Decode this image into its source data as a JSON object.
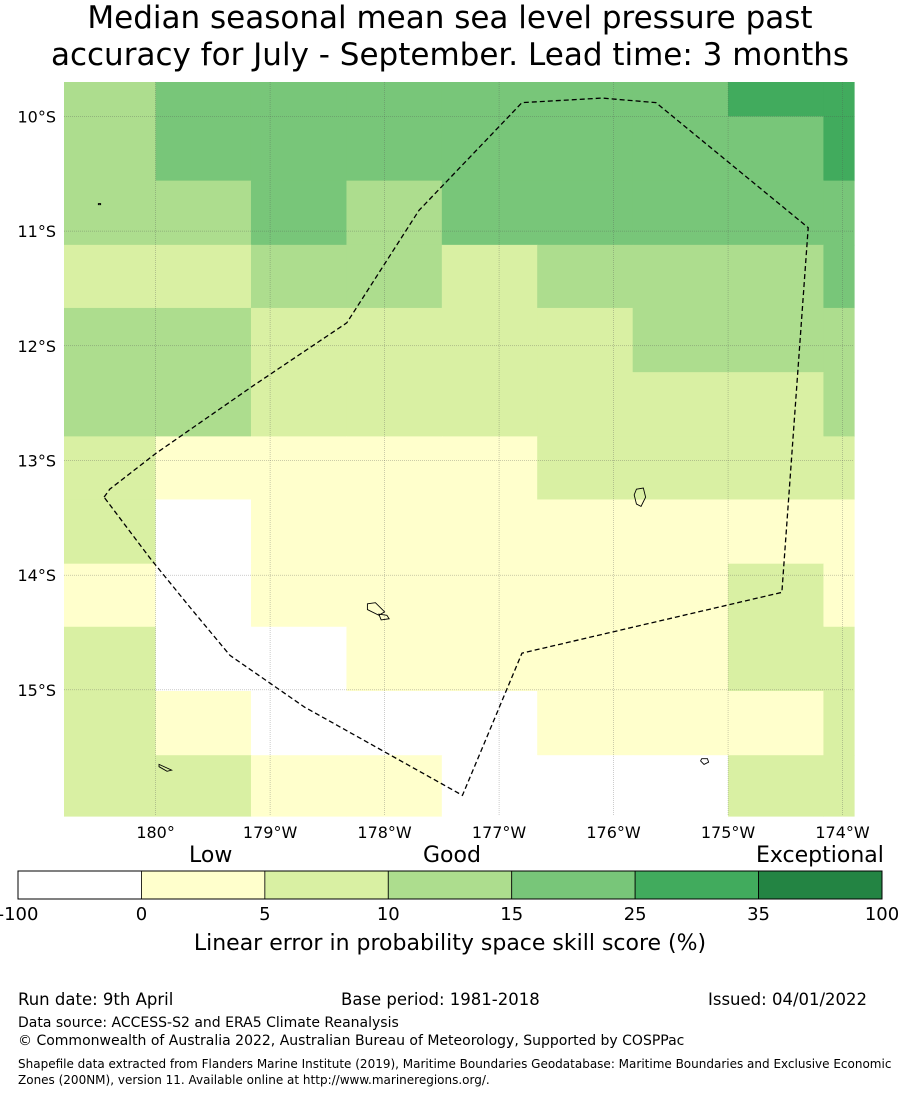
{
  "title": {
    "line1": "Median seasonal mean sea level pressure past",
    "line2": "accuracy for July - September. Lead time: 3 months"
  },
  "map": {
    "lon_ticks": [
      {
        "value": 180,
        "label": "180°"
      },
      {
        "value": 181,
        "label": "179°W"
      },
      {
        "value": 182,
        "label": "178°W"
      },
      {
        "value": 183,
        "label": "177°W"
      },
      {
        "value": 184,
        "label": "176°W"
      },
      {
        "value": 185,
        "label": "175°W"
      },
      {
        "value": 186,
        "label": "174°W"
      }
    ],
    "lat_ticks": [
      {
        "value": -10,
        "label": "10°S"
      },
      {
        "value": -11,
        "label": "11°S"
      },
      {
        "value": -12,
        "label": "12°S"
      },
      {
        "value": -13,
        "label": "13°S"
      },
      {
        "value": -14,
        "label": "14°S"
      },
      {
        "value": -15,
        "label": "15°S"
      }
    ],
    "lon_range": [
      179.2,
      186.1
    ],
    "lat_range": [
      -16.1,
      -9.7
    ],
    "grid_lon_edges": [
      179.2,
      180.0,
      180.833,
      181.667,
      182.5,
      183.333,
      184.167,
      185.0,
      185.833,
      186.1
    ],
    "grid_lat_edges": [
      -9.7,
      -10.0,
      -10.56,
      -11.12,
      -11.67,
      -12.23,
      -12.79,
      -13.34,
      -13.9,
      -14.45,
      -15.01,
      -15.57,
      -16.1
    ],
    "grid_levels": [
      [
        2,
        3,
        3,
        3,
        3,
        3,
        3,
        4,
        4
      ],
      [
        2,
        3,
        3,
        3,
        3,
        3,
        3,
        3,
        4
      ],
      [
        2,
        2,
        3,
        2,
        3,
        3,
        3,
        3,
        3
      ],
      [
        1,
        1,
        2,
        2,
        1,
        2,
        2,
        2,
        3
      ],
      [
        2,
        2,
        1,
        1,
        1,
        1,
        2,
        2,
        2
      ],
      [
        2,
        2,
        1,
        1,
        1,
        1,
        1,
        1,
        2
      ],
      [
        1,
        0,
        0,
        0,
        0,
        1,
        1,
        1,
        1
      ],
      [
        1,
        -1,
        0,
        0,
        0,
        0,
        0,
        0,
        0
      ],
      [
        0,
        -1,
        0,
        0,
        0,
        0,
        0,
        1,
        0
      ],
      [
        1,
        -1,
        -1,
        0,
        0,
        0,
        0,
        1,
        1
      ],
      [
        1,
        0,
        -1,
        -1,
        -1,
        0,
        0,
        0,
        1
      ],
      [
        1,
        1,
        0,
        0,
        -1,
        -1,
        -1,
        1,
        1
      ]
    ],
    "eez_boundary": [
      [
        179.55,
        -13.32
      ],
      [
        179.6,
        -13.25
      ],
      [
        180.0,
        -12.94
      ],
      [
        180.85,
        -12.35
      ],
      [
        181.67,
        -11.8
      ],
      [
        182.3,
        -10.82
      ],
      [
        183.2,
        -9.88
      ],
      [
        183.9,
        -9.84
      ],
      [
        184.37,
        -9.88
      ],
      [
        185.7,
        -10.97
      ],
      [
        185.47,
        -14.15
      ],
      [
        183.2,
        -14.68
      ],
      [
        182.68,
        -15.92
      ],
      [
        181.3,
        -15.15
      ],
      [
        180.65,
        -14.7
      ],
      [
        180.3,
        -14.28
      ],
      [
        179.95,
        -13.85
      ],
      [
        179.55,
        -13.32
      ]
    ],
    "islands": [
      {
        "points": [
          [
            184.2,
            -13.25
          ],
          [
            184.26,
            -13.24
          ],
          [
            184.28,
            -13.32
          ],
          [
            184.24,
            -13.4
          ],
          [
            184.2,
            -13.38
          ],
          [
            184.18,
            -13.3
          ]
        ]
      },
      {
        "points": [
          [
            181.85,
            -14.25
          ],
          [
            181.92,
            -14.24
          ],
          [
            182.0,
            -14.32
          ],
          [
            181.95,
            -14.35
          ],
          [
            181.85,
            -14.3
          ]
        ]
      },
      {
        "points": [
          [
            181.95,
            -14.34
          ],
          [
            182.02,
            -14.35
          ],
          [
            182.04,
            -14.38
          ],
          [
            181.97,
            -14.39
          ]
        ]
      },
      {
        "points": [
          [
            184.77,
            -15.6
          ],
          [
            184.82,
            -15.6
          ],
          [
            184.83,
            -15.63
          ],
          [
            184.79,
            -15.65
          ],
          [
            184.76,
            -15.62
          ]
        ]
      },
      {
        "points": [
          [
            180.03,
            -15.65
          ],
          [
            180.14,
            -15.7
          ],
          [
            180.1,
            -15.71
          ],
          [
            180.03,
            -15.67
          ]
        ]
      },
      {
        "points": [
          [
            179.5,
            -10.76
          ],
          [
            179.52,
            -10.76
          ],
          [
            179.52,
            -10.77
          ],
          [
            179.5,
            -10.77
          ]
        ]
      }
    ]
  },
  "colorbar": {
    "categories": [
      {
        "label": "Low"
      },
      {
        "label": "Good"
      },
      {
        "label": "Exceptional"
      }
    ],
    "bins": [
      {
        "from": -100,
        "to": 0,
        "color": "#ffffff"
      },
      {
        "from": 0,
        "to": 5,
        "color": "#ffffcc"
      },
      {
        "from": 5,
        "to": 10,
        "color": "#d9f0a3"
      },
      {
        "from": 10,
        "to": 15,
        "color": "#addd8e"
      },
      {
        "from": 15,
        "to": 25,
        "color": "#78c679"
      },
      {
        "from": 25,
        "to": 35,
        "color": "#41ab5d"
      },
      {
        "from": 35,
        "to": 100,
        "color": "#238443"
      }
    ],
    "tick_labels": [
      "-100",
      "0",
      "5",
      "10",
      "15",
      "25",
      "35",
      "100"
    ],
    "title": "Linear error in probability space skill score (%)"
  },
  "footer": {
    "run_date": "Run date: 9th April",
    "base_period": "Base period: 1981-2018",
    "issued": "Issued: 04/01/2022",
    "data_source": "Data source: ACCESS-S2 and ERA5 Climate Reanalysis",
    "copyright": "© Commonwealth of Australia 2022, Australian Bureau of Meteorology, Supported by COSPPac",
    "shapefile": "Shapefile data extracted from Flanders Marine Institute (2019), Maritime Boundaries Geodatabase: Maritime Boundaries and Exclusive Economic Zones (200NM), version 11. Available online at http://www.marineregions.org/."
  }
}
